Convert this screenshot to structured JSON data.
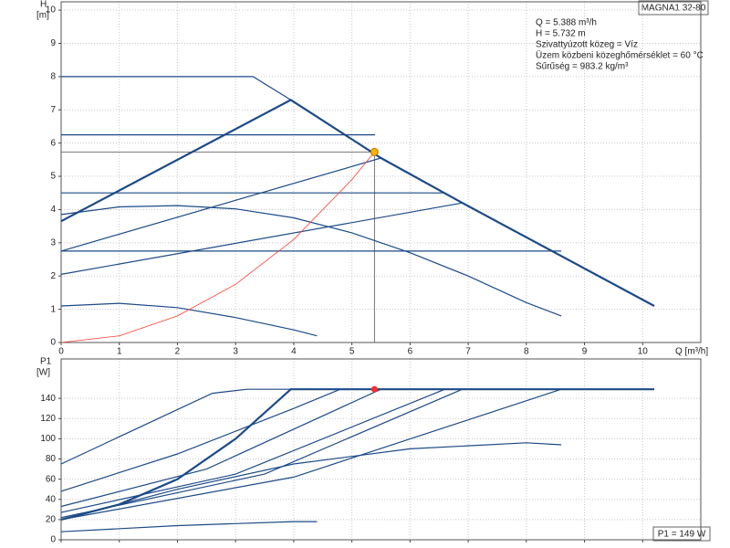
{
  "chart_data": [
    {
      "type": "line",
      "model": "MAGNA1 32-80",
      "annotations": [
        "Q = 5.388 m³/h",
        "H = 5.732 m",
        "Szivattyúzott közeg = Víz",
        "Üzem közbeni közeghőmérséklet = 60 °C",
        "Sűrűség = 983.2 kg/m³"
      ],
      "ylabel": [
        "H",
        "[m]"
      ],
      "xlabel": "Q [m³/h]",
      "xlim": [
        0,
        11
      ],
      "ylim": [
        0,
        10.25
      ],
      "xticks": [
        0,
        1,
        2,
        3,
        4,
        5,
        6,
        7,
        8,
        9,
        10
      ],
      "yticks": [
        0,
        1,
        2,
        3,
        4,
        5,
        6,
        7,
        8,
        9,
        10
      ],
      "xtick_labels": true,
      "grid": true,
      "series": [
        {
          "color": "#1c4a87",
          "width": 2.2,
          "x": [
            0,
            3.95,
            5.5,
            6.9,
            10.2
          ],
          "values": [
            3.65,
            7.3,
            5.55,
            4.2,
            1.1
          ]
        },
        {
          "color": "#1c4a87",
          "width": 1.2,
          "x": [
            0,
            3.3,
            3.95
          ],
          "values": [
            8,
            8,
            7.3
          ]
        },
        {
          "color": "#1c4a87",
          "width": 1.2,
          "x": [
            0,
            5.4
          ],
          "values": [
            6.25,
            6.25
          ]
        },
        {
          "color": "#1c4a87",
          "width": 1.2,
          "x": [
            0,
            6.6
          ],
          "values": [
            4.5,
            4.5
          ]
        },
        {
          "color": "#1c4a87",
          "width": 1.2,
          "x": [
            0,
            8.6
          ],
          "values": [
            2.75,
            2.75
          ]
        },
        {
          "color": "#1c4a87",
          "width": 1.2,
          "x": [
            0,
            5.5
          ],
          "values": [
            2.75,
            5.55
          ]
        },
        {
          "color": "#1c4a87",
          "width": 1.2,
          "x": [
            0,
            6.9
          ],
          "values": [
            2.05,
            4.2
          ]
        },
        {
          "color": "#1c4a87",
          "width": 1.2,
          "x": [
            0,
            1,
            2,
            3,
            4,
            5,
            6,
            7,
            8,
            8.6
          ],
          "values": [
            3.85,
            4.08,
            4.12,
            4.02,
            3.75,
            3.3,
            2.7,
            2.0,
            1.2,
            0.8
          ]
        },
        {
          "color": "#1c4a87",
          "width": 1.2,
          "x": [
            0,
            1,
            2,
            3,
            4,
            4.4
          ],
          "values": [
            1.1,
            1.18,
            1.05,
            0.75,
            0.38,
            0.2
          ]
        },
        {
          "color": "#ff3b2f",
          "width": 0.8,
          "x": [
            0,
            1,
            2,
            3,
            4,
            5,
            5.388
          ],
          "values": [
            0,
            0.2,
            0.8,
            1.75,
            3.1,
            4.9,
            5.732
          ]
        }
      ],
      "operating_point": {
        "x": 5.388,
        "y": 5.732,
        "color": "#f7b500"
      }
    },
    {
      "type": "line",
      "ylabel": [
        "P1",
        "[W]"
      ],
      "power_label": "P1 = 149 W",
      "xlim": [
        0,
        11
      ],
      "ylim": [
        0,
        179
      ],
      "xticks": [
        0,
        1,
        2,
        3,
        4,
        5,
        6,
        7,
        8,
        9,
        10
      ],
      "yticks": [
        0,
        20,
        40,
        60,
        80,
        100,
        120,
        140
      ],
      "xtick_labels": false,
      "grid": true,
      "series": [
        {
          "color": "#1c4a87",
          "width": 2.2,
          "x": [
            0,
            1,
            2,
            3,
            3.95,
            10.2
          ],
          "values": [
            20,
            35,
            60,
            100,
            149,
            149
          ]
        },
        {
          "color": "#1c4a87",
          "width": 1.2,
          "x": [
            0,
            2.6,
            3.2,
            4
          ],
          "values": [
            75,
            145,
            149,
            149
          ]
        },
        {
          "color": "#1c4a87",
          "width": 1.2,
          "x": [
            0,
            2,
            4,
            4.8
          ],
          "values": [
            48,
            85,
            130,
            149
          ]
        },
        {
          "color": "#1c4a87",
          "width": 1.2,
          "x": [
            0,
            2.5,
            5.5
          ],
          "values": [
            33,
            70,
            149
          ]
        },
        {
          "color": "#1c4a87",
          "width": 1.2,
          "x": [
            0,
            3,
            6.6
          ],
          "values": [
            27,
            65,
            149
          ]
        },
        {
          "color": "#1c4a87",
          "width": 1.2,
          "x": [
            0,
            3.5,
            6.9
          ],
          "values": [
            22,
            65,
            149
          ]
        },
        {
          "color": "#1c4a87",
          "width": 1.2,
          "x": [
            0,
            4,
            8.6
          ],
          "values": [
            20,
            62,
            149
          ]
        },
        {
          "color": "#1c4a87",
          "width": 1.2,
          "x": [
            0,
            2,
            4,
            6,
            8,
            8.6
          ],
          "values": [
            20,
            50,
            75,
            90,
            96,
            94
          ]
        },
        {
          "color": "#1c4a87",
          "width": 1.2,
          "x": [
            0,
            2,
            4,
            4.4
          ],
          "values": [
            8,
            14,
            18,
            18
          ]
        }
      ],
      "operating_point": {
        "x": 5.388,
        "y": 149,
        "color": "#ff2a2a"
      }
    }
  ]
}
